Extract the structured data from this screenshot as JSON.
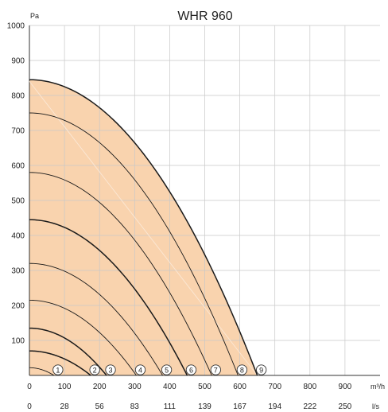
{
  "chart_data": {
    "type": "line",
    "title": "WHR 960",
    "ylabel": "Pa",
    "xlabel": "m³/h",
    "x2label": "l/s",
    "ylim": [
      0,
      1000
    ],
    "xlim": [
      0,
      1000
    ],
    "grid": true,
    "y_ticks": [
      "100",
      "200",
      "300",
      "400",
      "500",
      "600",
      "700",
      "800",
      "900",
      "1000"
    ],
    "x_ticks": [
      "0",
      "100",
      "200",
      "300",
      "400",
      "500",
      "600",
      "700",
      "800",
      "900"
    ],
    "x2_ticks": [
      "0",
      "28",
      "56",
      "83",
      "111",
      "139",
      "167",
      "194",
      "222",
      "250"
    ],
    "fill_color": "#f9d3ae",
    "series": [
      {
        "name": "1",
        "pressure_at_zero_flow": 22,
        "max_flow": 70
      },
      {
        "name": "2",
        "pressure_at_zero_flow": 70,
        "max_flow": 175
      },
      {
        "name": "3",
        "pressure_at_zero_flow": 135,
        "max_flow": 220
      },
      {
        "name": "4",
        "pressure_at_zero_flow": 215,
        "max_flow": 305
      },
      {
        "name": "5",
        "pressure_at_zero_flow": 320,
        "max_flow": 380
      },
      {
        "name": "6",
        "pressure_at_zero_flow": 445,
        "max_flow": 450
      },
      {
        "name": "7",
        "pressure_at_zero_flow": 580,
        "max_flow": 520
      },
      {
        "name": "8",
        "pressure_at_zero_flow": 750,
        "max_flow": 595
      },
      {
        "name": "9",
        "pressure_at_zero_flow": 845,
        "max_flow": 650
      }
    ]
  }
}
